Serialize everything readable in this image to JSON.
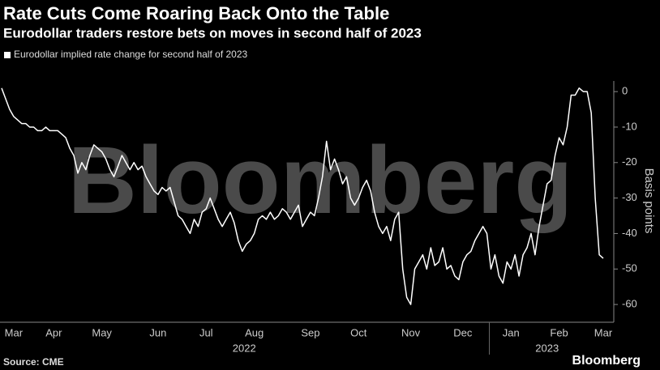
{
  "chart_data": {
    "type": "line",
    "title": "Rate Cuts Come Roaring Back Onto the Table",
    "subtitle": "Eurodollar traders restore bets on moves in second half of 2023",
    "y_label": "Basis points",
    "source": "Source: CME",
    "watermark": "Bloomberg",
    "brand": "Bloomberg",
    "categories": [
      null,
      null,
      null,
      "Mar",
      null,
      null,
      null,
      null,
      null,
      null,
      null,
      null,
      null,
      "Apr",
      null,
      null,
      null,
      null,
      null,
      null,
      null,
      null,
      null,
      null,
      null,
      "May",
      null,
      null,
      null,
      null,
      null,
      null,
      null,
      null,
      null,
      null,
      null,
      null,
      null,
      "Jun",
      null,
      null,
      null,
      null,
      null,
      null,
      null,
      null,
      null,
      null,
      null,
      "Jul",
      null,
      null,
      null,
      null,
      null,
      null,
      null,
      null,
      null,
      null,
      null,
      "Aug",
      null,
      null,
      null,
      null,
      null,
      null,
      null,
      null,
      null,
      null,
      null,
      null,
      null,
      "Sep",
      null,
      null,
      null,
      null,
      null,
      null,
      null,
      null,
      null,
      null,
      null,
      "Oct",
      null,
      null,
      null,
      null,
      null,
      null,
      null,
      null,
      null,
      null,
      null,
      null,
      "Nov",
      null,
      null,
      null,
      null,
      null,
      null,
      null,
      null,
      null,
      null,
      null,
      null,
      "Dec",
      null,
      null,
      null,
      null,
      null,
      null,
      null,
      null,
      null,
      null,
      null,
      "Jan",
      null,
      null,
      null,
      null,
      null,
      null,
      null,
      null,
      null,
      null,
      null,
      "Feb",
      null,
      null,
      null,
      null,
      null,
      null,
      null,
      null,
      null,
      null,
      "Mar"
    ],
    "groups": [
      {
        "label": "2022",
        "start": 0,
        "end": 121
      },
      {
        "label": "2023",
        "start": 122,
        "end": 150
      }
    ],
    "series": [
      {
        "name": "Eurodollar implied rate change for second half of 2023",
        "color": "#ffffff",
        "values": [
          1,
          -2,
          -5,
          -7,
          -8,
          -9,
          -9,
          -10,
          -10,
          -11,
          -11,
          -10,
          -11,
          -11,
          -11,
          -12,
          -13,
          -16,
          -18,
          -23,
          -20,
          -22,
          -18,
          -15,
          -16,
          -17,
          -19,
          -22,
          -24,
          -21,
          -18,
          -20,
          -22,
          -20,
          -22,
          -21,
          -24,
          -26,
          -28,
          -29,
          -27,
          -28,
          -27,
          -31,
          -35,
          -36,
          -38,
          -40,
          -36,
          -38,
          -34,
          -33,
          -30,
          -33,
          -36,
          -38,
          -36,
          -34,
          -37,
          -42,
          -45,
          -43,
          -42,
          -40,
          -36,
          -35,
          -36,
          -34,
          -36,
          -35,
          -33,
          -34,
          -36,
          -34,
          -32,
          -38,
          -36,
          -34,
          -35,
          -30,
          -24,
          -14,
          -22,
          -19,
          -22,
          -26,
          -24,
          -30,
          -32,
          -30,
          -27,
          -25,
          -28,
          -34,
          -38,
          -40,
          -38,
          -42,
          -36,
          -34,
          -50,
          -58,
          -60,
          -50,
          -48,
          -46,
          -50,
          -44,
          -49,
          -48,
          -44,
          -50,
          -49,
          -52,
          -53,
          -48,
          -46,
          -45,
          -42,
          -40,
          -38,
          -40,
          -50,
          -46,
          -52,
          -54,
          -48,
          -50,
          -46,
          -52,
          -46,
          -44,
          -40,
          -46,
          -38,
          -32,
          -26,
          -25,
          -18,
          -13,
          -15,
          -10,
          -1,
          -1,
          1,
          0,
          0,
          -6,
          -30,
          -46,
          -47
        ]
      }
    ],
    "ylim": [
      -65,
      3
    ],
    "yticks": [
      0,
      -10,
      -20,
      -30,
      -40,
      -50,
      -60
    ],
    "y_axis_side": "right",
    "grid": false
  }
}
